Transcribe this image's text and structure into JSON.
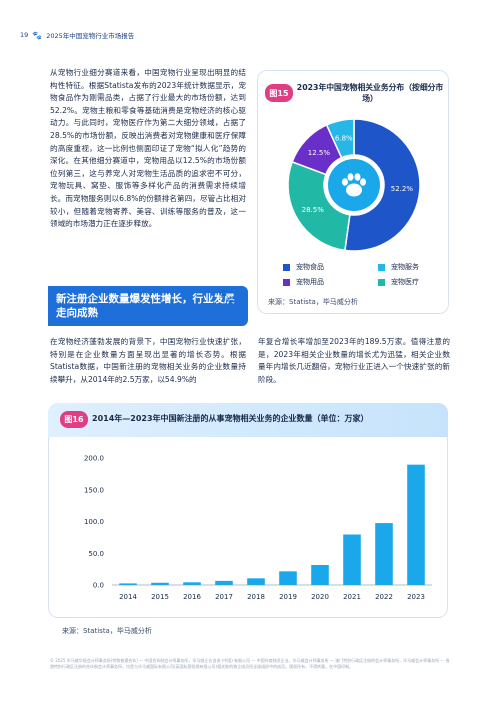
{
  "header": {
    "page_number": "19",
    "report_title": "2025年中国宠物行业市场报告"
  },
  "intro_text": "从宠物行业细分赛道来看，中国宠物行业呈现出明显的结构性特征。根据Statista发布的2023年统计数据显示，宠物食品作为刚需品类，占据了行业最大的市场份额，达到52.2%。宠物主粮和零食等基础消费是宠物经济的核心驱动力。与此同时，宠物医疗作为第二大细分领域，占据了28.5%的市场份额，反映出消费者对宠物健康和医疗保障的高度重视，这一比例也侧面印证了宠物“拟人化”趋势的深化。在其他细分赛道中，宠物用品以12.5%的市场份额位列第三，这与养宠人对宠物生活品质的追求密不可分，宠物玩具、窝垫、服饰等多样化产品的消费需求持续增长。而宠物服务则以6.8%的份额排名第四，尽管占比相对较小，但随着宠物寄养、美容、训练等服务的普及，这一领域的市场潜力正在逐步释放。",
  "figure15": {
    "badge": "图15",
    "title": "2023年中国宠物相关业务分布（按细分市场）",
    "source": "来源：Statista，毕马威分析",
    "colors": {
      "food": "#1e55c9",
      "service": "#26b6e8",
      "supplies": "#6a2fc9",
      "medical": "#22b8a6"
    }
  },
  "section": {
    "title": "新注册企业数量爆发性增长，行业发展走向成熟"
  },
  "body_left": "在宠物经济蓬勃发展的背景下，中国宠物行业快速扩张，特别是在企业数量方面呈现出显著的增长态势。根据Statista数据，中国新注册的宠物相关业务的企业数量持续攀升，从2014年的2.5万家，以54.9%的",
  "body_right": "年复合增长率增加至2023年的189.5万家。值得注意的是，2023年相关企业数量的增长尤为迅猛，相关企业数量年内增长几近翻倍，宠物行业正进入一个快速扩张的新阶段。",
  "figure16": {
    "badge": "图16",
    "title": "2014年—2023年中国新注册的从事宠物相关业务的企业数量（单位：万家）",
    "source": "来源：Statista，毕马威分析",
    "bar_color": "#1ba8ea"
  },
  "footnote": "© 2025 毕马威华振会计师事务所(特殊普通合伙) — 中国合伙制会计师事务所，毕马威企业咨询 (中国) 有限公司 — 中国外商独资企业，毕马威会计师事务所 — 澳门特别行政区注册的会计师事务所，毕马威会计师事务所 — 香港特别行政区注册的合伙制会计师事务所，均是与毕马威国际有限公司(英国私营担保有限公司)相关联的独立成员所全球组织中的成员。版权所有，不得转载。在中国印制。",
  "chart_data": [
    {
      "type": "pie",
      "title": "2023年中国宠物相关业务分布（按细分市场）",
      "categories": [
        "宠物食品",
        "宠物医疗",
        "宠物用品",
        "宠物服务"
      ],
      "values": [
        52.2,
        28.5,
        12.5,
        6.8
      ],
      "labels": [
        "52.2%",
        "28.5%",
        "12.5%",
        "6.8%"
      ],
      "legend": [
        "宠物食品",
        "宠物服务",
        "宠物用品",
        "宠物医疗"
      ],
      "legend_placement": "bottom"
    },
    {
      "type": "bar",
      "title": "2014年—2023年中国新注册的从事宠物相关业务的企业数量（单位：万家）",
      "categories": [
        "2014",
        "2015",
        "2016",
        "2017",
        "2018",
        "2019",
        "2020",
        "2021",
        "2022",
        "2023"
      ],
      "values": [
        2.5,
        3.5,
        4.2,
        6.5,
        10.5,
        21.5,
        31.5,
        79.5,
        97.5,
        189.5
      ],
      "ylim": [
        0,
        200
      ],
      "yticks": [
        "0.0",
        "50.0",
        "100.0",
        "150.0",
        "200.0"
      ],
      "grid": false
    }
  ]
}
